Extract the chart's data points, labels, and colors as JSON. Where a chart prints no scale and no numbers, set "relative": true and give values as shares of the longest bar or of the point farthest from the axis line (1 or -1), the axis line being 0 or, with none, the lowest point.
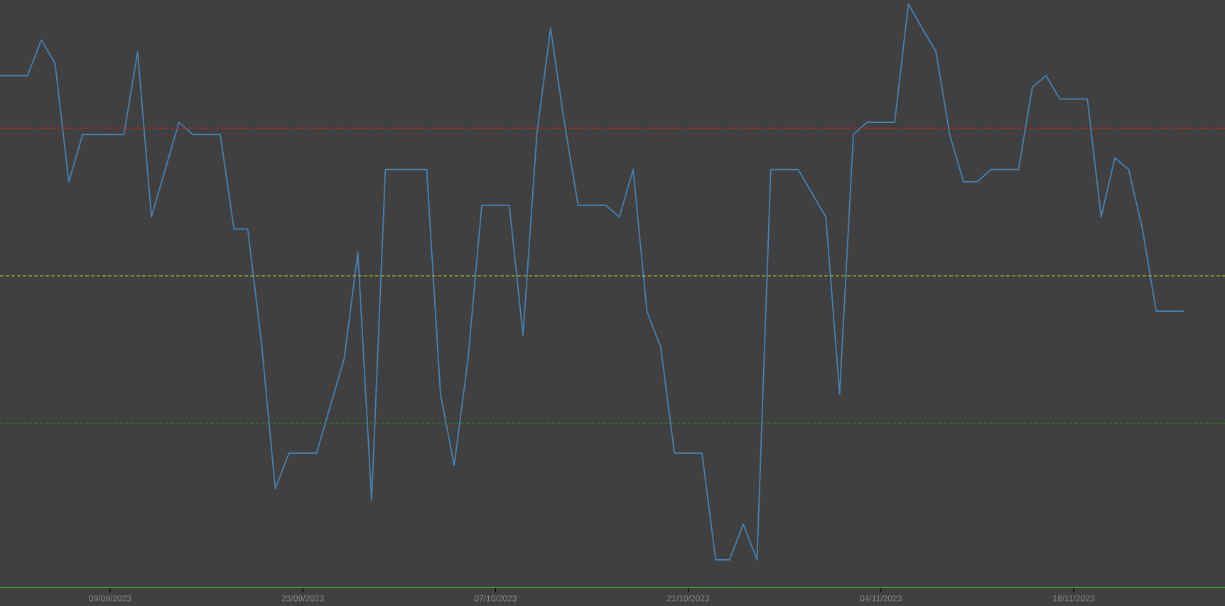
{
  "chart_data": {
    "type": "line",
    "relative": true,
    "x": [
      "2023-09-01",
      "2023-09-02",
      "2023-09-03",
      "2023-09-04",
      "2023-09-05",
      "2023-09-06",
      "2023-09-07",
      "2023-09-08",
      "2023-09-09",
      "2023-09-10",
      "2023-09-11",
      "2023-09-12",
      "2023-09-13",
      "2023-09-14",
      "2023-09-15",
      "2023-09-16",
      "2023-09-17",
      "2023-09-18",
      "2023-09-19",
      "2023-09-20",
      "2023-09-21",
      "2023-09-22",
      "2023-09-23",
      "2023-09-24",
      "2023-09-25",
      "2023-09-26",
      "2023-09-27",
      "2023-09-28",
      "2023-09-29",
      "2023-09-30",
      "2023-10-01",
      "2023-10-02",
      "2023-10-03",
      "2023-10-04",
      "2023-10-05",
      "2023-10-06",
      "2023-10-07",
      "2023-10-08",
      "2023-10-09",
      "2023-10-10",
      "2023-10-11",
      "2023-10-12",
      "2023-10-13",
      "2023-10-14",
      "2023-10-15",
      "2023-10-16",
      "2023-10-17",
      "2023-10-18",
      "2023-10-19",
      "2023-10-20",
      "2023-10-21",
      "2023-10-22",
      "2023-10-23",
      "2023-10-24",
      "2023-10-25",
      "2023-10-26",
      "2023-10-27",
      "2023-10-28",
      "2023-10-29",
      "2023-10-30",
      "2023-10-31",
      "2023-11-01",
      "2023-11-02",
      "2023-11-03",
      "2023-11-04",
      "2023-11-05",
      "2023-11-06",
      "2023-11-07",
      "2023-11-08",
      "2023-11-09",
      "2023-11-10",
      "2023-11-11",
      "2023-11-12",
      "2023-11-13",
      "2023-11-14",
      "2023-11-15",
      "2023-11-16",
      "2023-11-17",
      "2023-11-18",
      "2023-11-19",
      "2023-11-20",
      "2023-11-21",
      "2023-11-22",
      "2023-11-23",
      "2023-11-24",
      "2023-11-25",
      "2023-11-26"
    ],
    "series": [
      {
        "color": "#4682b4",
        "values": [
          0.877,
          0.877,
          0.877,
          0.938,
          0.898,
          0.695,
          0.776,
          0.776,
          0.776,
          0.776,
          0.918,
          0.635,
          0.716,
          0.797,
          0.776,
          0.776,
          0.776,
          0.614,
          0.614,
          0.418,
          0.169,
          0.23,
          0.23,
          0.23,
          0.311,
          0.391,
          0.574,
          0.149,
          0.716,
          0.716,
          0.716,
          0.716,
          0.331,
          0.209,
          0.391,
          0.655,
          0.655,
          0.655,
          0.432,
          0.776,
          0.958,
          0.797,
          0.655,
          0.655,
          0.655,
          0.635,
          0.716,
          0.473,
          0.412,
          0.23,
          0.23,
          0.23,
          0.047,
          0.047,
          0.108,
          0.047,
          0.716,
          0.716,
          0.716,
          0.675,
          0.635,
          0.331,
          0.776,
          0.797,
          0.797,
          0.797,
          1,
          0.958,
          0.918,
          0.776,
          0.695,
          0.695,
          0.716,
          0.716,
          0.716,
          0.857,
          0.877,
          0.837,
          0.837,
          0.837,
          0.635,
          0.736,
          0.716,
          0.614,
          0.473,
          0.473,
          0.473
        ]
      }
    ],
    "xlim": [
      "2023-09-01",
      "2023-11-29"
    ],
    "xticks": [
      {
        "value": "2023-09-09",
        "label": "09/09/2023"
      },
      {
        "value": "2023-09-23",
        "label": "23/09/2023"
      },
      {
        "value": "2023-10-07",
        "label": "07/10/2023"
      },
      {
        "value": "2023-10-21",
        "label": "21/10/2023"
      },
      {
        "value": "2023-11-04",
        "label": "04/11/2023"
      },
      {
        "value": "2023-11-18",
        "label": "18/11/2023"
      }
    ],
    "ref_lines": [
      {
        "axis": "y",
        "value": 0.787,
        "color": "#cc2222",
        "line_style": "dashed"
      },
      {
        "axis": "y",
        "value": 0.534,
        "color": "#e6e62e",
        "line_style": "dashed"
      },
      {
        "axis": "y",
        "value": 0.281,
        "color": "#1f8a1f",
        "line_style": "dashed"
      }
    ]
  }
}
